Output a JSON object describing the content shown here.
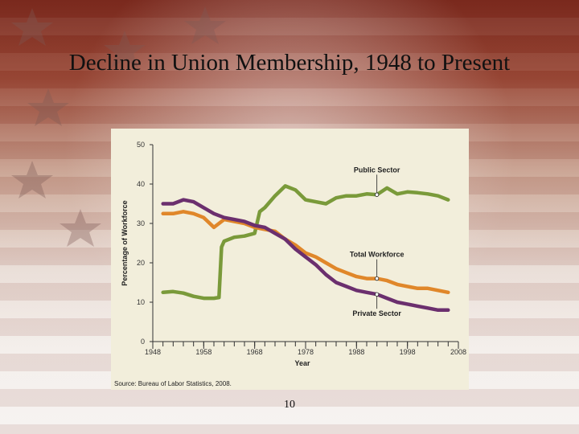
{
  "slide": {
    "title": "Decline in Union Membership, 1948 to Present",
    "page_number": "10"
  },
  "chart_data": {
    "type": "line",
    "title": "",
    "xlabel": "Year",
    "ylabel": "Percentage of Workforce",
    "xlim": [
      1948,
      2008
    ],
    "ylim": [
      0,
      50
    ],
    "x_ticks": [
      "1948",
      "1958",
      "1968",
      "1978",
      "1988",
      "1998",
      "2008"
    ],
    "y_ticks": [
      "0",
      "10",
      "20",
      "30",
      "40",
      "50"
    ],
    "grid": false,
    "source": "Source: Bureau of Labor Statistics, 2008.",
    "series": [
      {
        "name": "Public Sector",
        "color": "#7a9a3a",
        "x": [
          1950,
          1952,
          1954,
          1956,
          1958,
          1960,
          1961,
          1961.5,
          1962,
          1964,
          1966,
          1968,
          1969,
          1970,
          1972,
          1974,
          1976,
          1978,
          1980,
          1982,
          1984,
          1986,
          1988,
          1990,
          1992,
          1994,
          1996,
          1998,
          2000,
          2002,
          2004,
          2006
        ],
        "y": [
          12.5,
          12.7,
          12.3,
          11.5,
          11.0,
          11.0,
          11.2,
          24,
          25.5,
          26.5,
          26.8,
          27.5,
          33,
          34,
          37,
          39.5,
          38.5,
          36,
          35.5,
          35,
          36.5,
          37,
          37,
          37.5,
          37.3,
          39,
          37.5,
          38,
          37.8,
          37.5,
          37,
          36
        ]
      },
      {
        "name": "Total Workforce",
        "color": "#e0872a",
        "x": [
          1950,
          1952,
          1954,
          1956,
          1958,
          1960,
          1962,
          1964,
          1966,
          1968,
          1970,
          1972,
          1974,
          1976,
          1978,
          1980,
          1982,
          1984,
          1986,
          1988,
          1990,
          1992,
          1994,
          1996,
          1998,
          2000,
          2002,
          2004,
          2006
        ],
        "y": [
          32.5,
          32.5,
          33,
          32.5,
          31.5,
          29,
          31,
          30.5,
          30,
          29,
          28.5,
          28,
          26,
          24.5,
          22.5,
          21.5,
          20,
          18.5,
          17.5,
          16.5,
          16,
          16,
          15.5,
          14.5,
          14,
          13.5,
          13.5,
          13,
          12.5
        ]
      },
      {
        "name": "Private Sector",
        "color": "#6b2f6e",
        "x": [
          1950,
          1952,
          1954,
          1956,
          1958,
          1960,
          1962,
          1964,
          1966,
          1968,
          1970,
          1972,
          1974,
          1976,
          1978,
          1980,
          1982,
          1984,
          1986,
          1988,
          1990,
          1992,
          1994,
          1996,
          1998,
          2000,
          2002,
          2004,
          2006
        ],
        "y": [
          35,
          35,
          36,
          35.5,
          34,
          32.5,
          31.5,
          31,
          30.5,
          29.5,
          29,
          27.5,
          26,
          23.5,
          21.5,
          19.5,
          17,
          15,
          14,
          13,
          12.5,
          12,
          11,
          10,
          9.5,
          9,
          8.5,
          8,
          8
        ]
      }
    ],
    "annotations": [
      {
        "label": "Public Sector",
        "x": 1992,
        "y": 37.3,
        "label_y": 43
      },
      {
        "label": "Total Workforce",
        "x": 1992,
        "y": 16,
        "label_y": 21.5
      },
      {
        "label": "Private Sector",
        "x": 1992,
        "y": 12,
        "label_y": 6.5
      }
    ]
  }
}
